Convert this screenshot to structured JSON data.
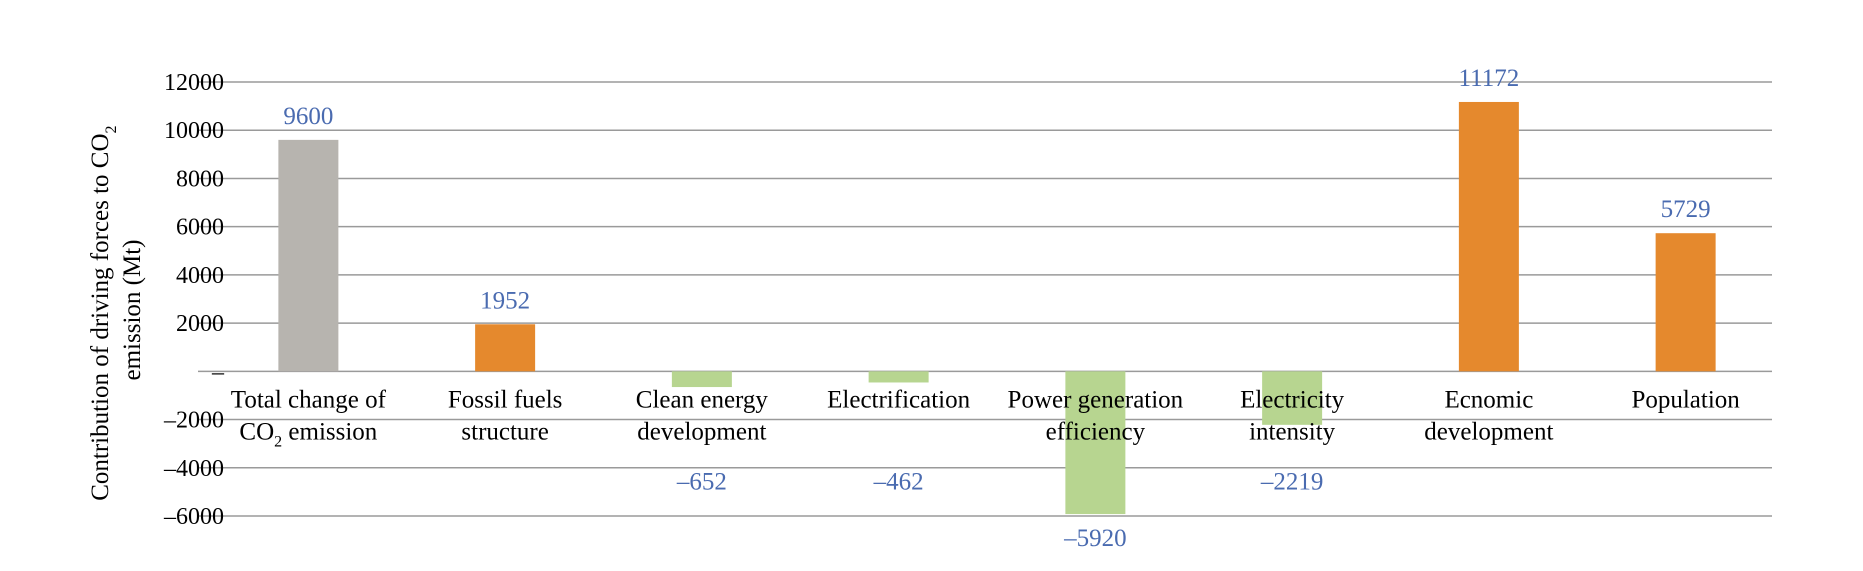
{
  "chart_data": {
    "type": "bar",
    "ylabel_line1": "Contribution of driving forces to CO",
    "ylabel_line1_sub": "2",
    "ylabel_line2": "emission (Mt)",
    "xlabel": "",
    "ylim": [
      -6000,
      12000
    ],
    "yticks": [
      12000,
      10000,
      8000,
      6000,
      4000,
      2000,
      0,
      -2000,
      -4000,
      -6000
    ],
    "ytick_labels": [
      "12000",
      "10000",
      "8000",
      "6000",
      "4000",
      "2000",
      "–",
      "–2000",
      "–4000",
      "–6000"
    ],
    "grid": true,
    "categories": [
      {
        "lines": [
          "Total change of",
          "CO|2| emission"
        ],
        "value": 9600,
        "label": "9600",
        "color": "#b7b4af"
      },
      {
        "lines": [
          "Fossil fuels",
          "structure"
        ],
        "value": 1952,
        "label": "1952",
        "color": "#e5892d"
      },
      {
        "lines": [
          "Clean energy",
          "development"
        ],
        "value": -652,
        "label": "–652",
        "color": "#b7d590"
      },
      {
        "lines": [
          "Electrification"
        ],
        "value": -462,
        "label": "–462",
        "color": "#b7d590"
      },
      {
        "lines": [
          "Power generation",
          "efficiency"
        ],
        "value": -5920,
        "label": "–5920",
        "color": "#b7d590"
      },
      {
        "lines": [
          "Electricity",
          "intensity"
        ],
        "value": -2219,
        "label": "–2219",
        "color": "#b7d590"
      },
      {
        "lines": [
          "Ecnomic",
          "development"
        ],
        "value": 11172,
        "label": "11172",
        "color": "#e5892d"
      },
      {
        "lines": [
          "Population"
        ],
        "value": 5729,
        "label": "5729",
        "color": "#e5892d"
      }
    ],
    "colors": {
      "grid": "#9a9a9a",
      "data_label": "#4a6bb0"
    }
  }
}
